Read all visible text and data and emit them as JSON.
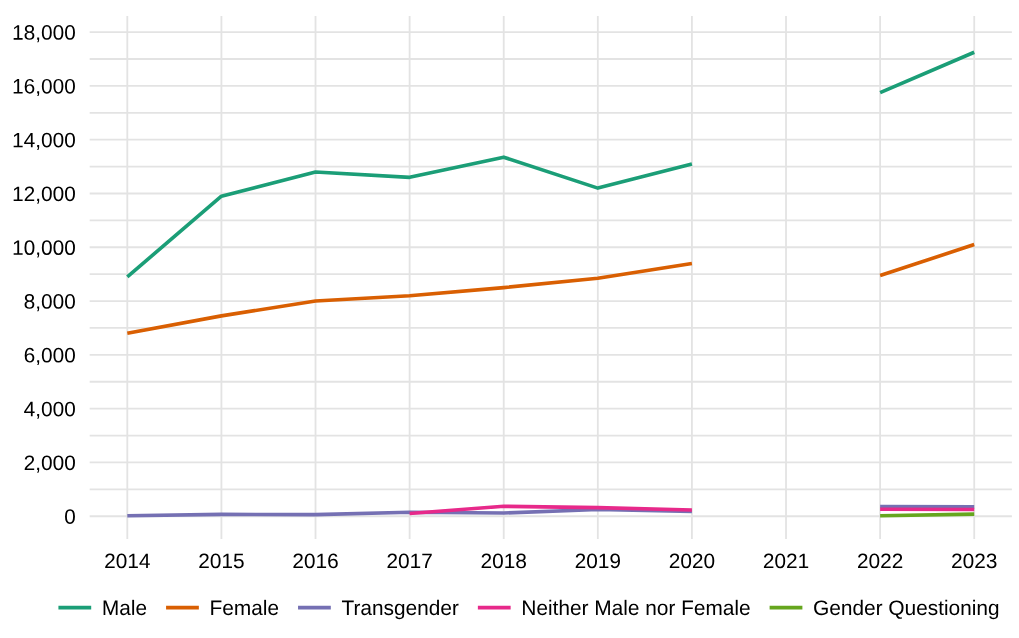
{
  "chart_data": {
    "type": "line",
    "x": [
      2014,
      2015,
      2016,
      2017,
      2018,
      2019,
      2020,
      2021,
      2022,
      2023
    ],
    "series": [
      {
        "name": "Male",
        "color": "#1b9e77",
        "values": [
          8900,
          11900,
          12800,
          12600,
          13350,
          12200,
          13100,
          null,
          15750,
          17250
        ]
      },
      {
        "name": "Female",
        "color": "#d95f02",
        "values": [
          6800,
          7450,
          8000,
          8200,
          8500,
          8850,
          9400,
          null,
          8950,
          10100
        ]
      },
      {
        "name": "Transgender",
        "color": "#7570b3",
        "values": [
          20,
          70,
          60,
          150,
          120,
          250,
          180,
          null,
          360,
          350
        ]
      },
      {
        "name": "Neither Male nor Female",
        "color": "#e7298a",
        "values": [
          null,
          null,
          null,
          100,
          370,
          320,
          230,
          null,
          260,
          250
        ]
      },
      {
        "name": "Gender Questioning",
        "color": "#66a61e",
        "values": [
          null,
          null,
          null,
          null,
          null,
          null,
          null,
          null,
          20,
          80
        ]
      }
    ],
    "xlim": [
      2013.6,
      2023.4
    ],
    "xticks": [
      2014,
      2015,
      2016,
      2017,
      2018,
      2019,
      2020,
      2021,
      2022,
      2023
    ],
    "ylim": [
      -850,
      18600
    ],
    "yticks": [
      {
        "value": 0,
        "label": "0"
      },
      {
        "value": 1000,
        "label": null
      },
      {
        "value": 2000,
        "label": "2,000"
      },
      {
        "value": 3000,
        "label": null
      },
      {
        "value": 4000,
        "label": "4,000"
      },
      {
        "value": 5000,
        "label": null
      },
      {
        "value": 6000,
        "label": "6,000"
      },
      {
        "value": 7000,
        "label": null
      },
      {
        "value": 8000,
        "label": "8,000"
      },
      {
        "value": 9000,
        "label": null
      },
      {
        "value": 10000,
        "label": "10,000"
      },
      {
        "value": 11000,
        "label": null
      },
      {
        "value": 12000,
        "label": "12,000"
      },
      {
        "value": 13000,
        "label": null
      },
      {
        "value": 14000,
        "label": "14,000"
      },
      {
        "value": 15000,
        "label": null
      },
      {
        "value": 16000,
        "label": "16,000"
      },
      {
        "value": 17000,
        "label": null
      },
      {
        "value": 18000,
        "label": "18,000"
      }
    ],
    "grid": true,
    "legend": "bottom",
    "marker": "none",
    "line_style": "solid"
  }
}
